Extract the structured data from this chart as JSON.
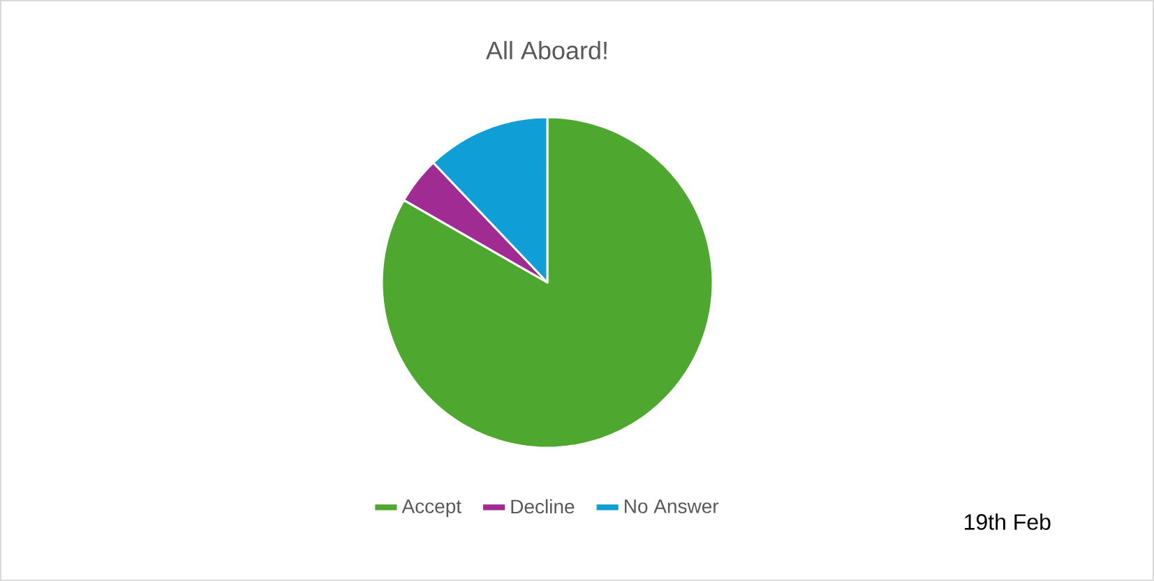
{
  "chart_data": {
    "type": "pie",
    "title": "All Aboard!",
    "categories": [
      "Accept",
      "Decline",
      "No Answer"
    ],
    "values": [
      83.3,
      4.6,
      12.1
    ],
    "colors": [
      "#4ea72e",
      "#a02b93",
      "#0f9ed5"
    ],
    "legend": "bottom",
    "annotations": [
      "19th Feb"
    ]
  }
}
